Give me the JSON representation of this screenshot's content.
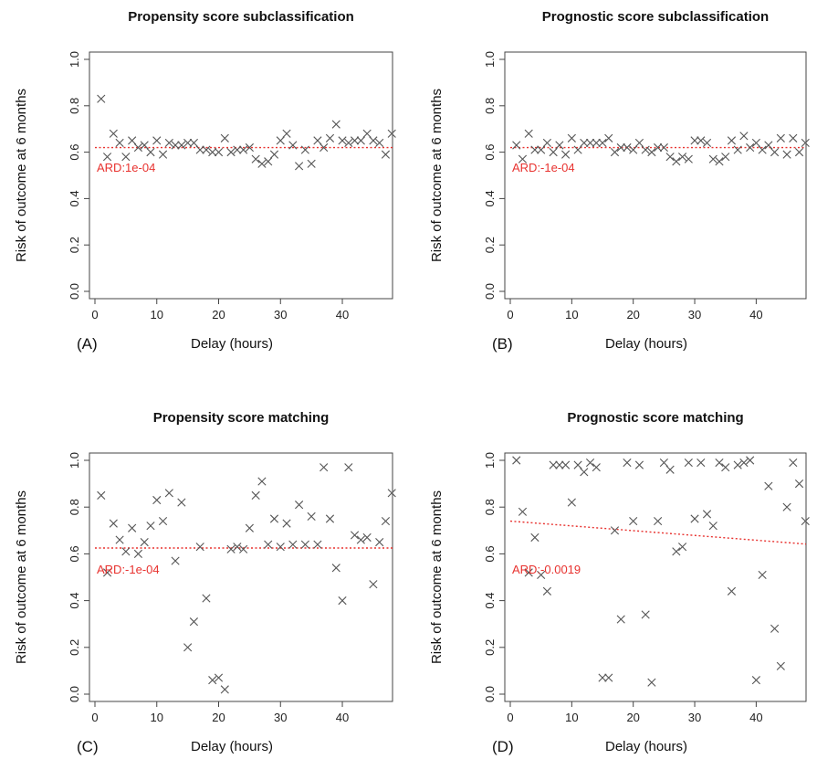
{
  "chart_data": [
    {
      "type": "scatter",
      "panel_label": "(A)",
      "title": "Propensity score subclassification",
      "xlabel": "Delay (hours)",
      "ylabel": "Risk of outcome at 6 months",
      "xlim": [
        0,
        49
      ],
      "ylim": [
        0,
        1
      ],
      "x_ticks": [
        0,
        10,
        20,
        30,
        40
      ],
      "y_ticks": [
        0.0,
        0.2,
        0.4,
        0.6,
        0.8,
        1.0
      ],
      "y_tick_labels": [
        "0.0",
        "0.2",
        "0.4",
        "0.6",
        "0.8",
        "1.0"
      ],
      "annotation": "ARD:1e-04",
      "trend": {
        "x": [
          0,
          49
        ],
        "y": [
          0.62,
          0.62
        ],
        "color": "#e8322f"
      },
      "marker_color": "#555555",
      "x": [
        1,
        2,
        3,
        4,
        5,
        6,
        7,
        8,
        9,
        10,
        11,
        12,
        13,
        14,
        15,
        16,
        17,
        18,
        19,
        20,
        21,
        22,
        23,
        24,
        25,
        26,
        27,
        28,
        29,
        30,
        31,
        32,
        33,
        34,
        35,
        36,
        37,
        38,
        39,
        40,
        41,
        42,
        43,
        44,
        45,
        46,
        47,
        48
      ],
      "y": [
        0.83,
        0.58,
        0.68,
        0.64,
        0.58,
        0.65,
        0.62,
        0.63,
        0.6,
        0.65,
        0.59,
        0.64,
        0.63,
        0.63,
        0.64,
        0.64,
        0.61,
        0.61,
        0.6,
        0.6,
        0.66,
        0.6,
        0.61,
        0.61,
        0.62,
        0.57,
        0.55,
        0.56,
        0.59,
        0.65,
        0.68,
        0.63,
        0.54,
        0.61,
        0.55,
        0.65,
        0.62,
        0.66,
        0.72,
        0.65,
        0.64,
        0.65,
        0.65,
        0.68,
        0.65,
        0.64,
        0.59,
        0.68
      ]
    },
    {
      "type": "scatter",
      "panel_label": "(B)",
      "title": "Prognostic score subclassification",
      "xlabel": "Delay (hours)",
      "ylabel": "Risk of outcome at 6 months",
      "xlim": [
        0,
        49
      ],
      "ylim": [
        0,
        1
      ],
      "x_ticks": [
        0,
        10,
        20,
        30,
        40
      ],
      "y_ticks": [
        0.0,
        0.2,
        0.4,
        0.6,
        0.8,
        1.0
      ],
      "y_tick_labels": [
        "0.0",
        "0.2",
        "0.4",
        "0.6",
        "0.8",
        "1.0"
      ],
      "annotation": "ARD:-1e-04",
      "trend": {
        "x": [
          0,
          49
        ],
        "y": [
          0.62,
          0.62
        ],
        "color": "#e8322f"
      },
      "marker_color": "#555555",
      "x": [
        1,
        2,
        3,
        4,
        5,
        6,
        7,
        8,
        9,
        10,
        11,
        12,
        13,
        14,
        15,
        16,
        17,
        18,
        19,
        20,
        21,
        22,
        23,
        24,
        25,
        26,
        27,
        28,
        29,
        30,
        31,
        32,
        33,
        34,
        35,
        36,
        37,
        38,
        39,
        40,
        41,
        42,
        43,
        44,
        45,
        46,
        47,
        48
      ],
      "y": [
        0.63,
        0.57,
        0.68,
        0.61,
        0.61,
        0.64,
        0.6,
        0.63,
        0.59,
        0.66,
        0.61,
        0.64,
        0.64,
        0.64,
        0.64,
        0.66,
        0.6,
        0.62,
        0.62,
        0.61,
        0.64,
        0.61,
        0.6,
        0.62,
        0.62,
        0.58,
        0.56,
        0.58,
        0.57,
        0.65,
        0.65,
        0.64,
        0.57,
        0.56,
        0.58,
        0.65,
        0.61,
        0.67,
        0.62,
        0.64,
        0.61,
        0.63,
        0.6,
        0.66,
        0.59,
        0.66,
        0.6,
        0.64
      ]
    },
    {
      "type": "scatter",
      "panel_label": "(C)",
      "title": "Propensity score matching",
      "xlabel": "Delay (hours)",
      "ylabel": "Risk of outcome at 6 months",
      "xlim": [
        0,
        49
      ],
      "ylim": [
        0,
        1
      ],
      "x_ticks": [
        0,
        10,
        20,
        30,
        40
      ],
      "y_ticks": [
        0.0,
        0.2,
        0.4,
        0.6,
        0.8,
        1.0
      ],
      "y_tick_labels": [
        "0.0",
        "0.2",
        "0.4",
        "0.6",
        "0.8",
        "1.0"
      ],
      "annotation": "ARD:-1e-04",
      "trend": {
        "x": [
          0,
          49
        ],
        "y": [
          0.625,
          0.625
        ],
        "color": "#e8322f"
      },
      "marker_color": "#555555",
      "x": [
        1,
        2,
        3,
        4,
        5,
        6,
        7,
        8,
        9,
        10,
        11,
        12,
        13,
        14,
        15,
        16,
        17,
        18,
        19,
        20,
        21,
        22,
        23,
        24,
        25,
        26,
        27,
        28,
        29,
        30,
        31,
        32,
        33,
        34,
        35,
        36,
        37,
        38,
        39,
        40,
        41,
        42,
        43,
        44,
        45,
        46,
        47,
        48
      ],
      "y": [
        0.85,
        0.52,
        0.73,
        0.66,
        0.61,
        0.71,
        0.6,
        0.65,
        0.72,
        0.83,
        0.74,
        0.86,
        0.57,
        0.82,
        0.2,
        0.31,
        0.63,
        0.41,
        0.06,
        0.07,
        0.02,
        0.62,
        0.63,
        0.62,
        0.71,
        0.85,
        0.91,
        0.64,
        0.75,
        0.63,
        0.73,
        0.64,
        0.81,
        0.64,
        0.76,
        0.64,
        0.97,
        0.75,
        0.54,
        0.4,
        0.97,
        0.68,
        0.66,
        0.67,
        0.47,
        0.65,
        0.74,
        0.86
      ]
    },
    {
      "type": "scatter",
      "panel_label": "(D)",
      "title": "Prognostic score matching",
      "xlabel": "Delay (hours)",
      "ylabel": "Risk of outcome at 6 months",
      "xlim": [
        0,
        49
      ],
      "ylim": [
        0,
        1
      ],
      "x_ticks": [
        0,
        10,
        20,
        30,
        40
      ],
      "y_ticks": [
        0.0,
        0.2,
        0.4,
        0.6,
        0.8,
        1.0
      ],
      "y_tick_labels": [
        "0.0",
        "0.2",
        "0.4",
        "0.6",
        "0.8",
        "1.0"
      ],
      "annotation": "ARD:-0.0019",
      "trend": {
        "x": [
          0,
          49
        ],
        "y": [
          0.74,
          0.64
        ],
        "color": "#e8322f"
      },
      "marker_color": "#555555",
      "x": [
        1,
        2,
        3,
        4,
        5,
        6,
        7,
        8,
        9,
        10,
        11,
        12,
        13,
        14,
        15,
        16,
        17,
        18,
        19,
        20,
        21,
        22,
        23,
        24,
        25,
        26,
        27,
        28,
        29,
        30,
        31,
        32,
        33,
        34,
        35,
        36,
        37,
        38,
        39,
        40,
        41,
        42,
        43,
        44,
        45,
        46,
        47,
        48
      ],
      "y": [
        1.0,
        0.78,
        0.52,
        0.67,
        0.51,
        0.44,
        0.98,
        0.98,
        0.98,
        0.82,
        0.98,
        0.95,
        0.99,
        0.97,
        0.07,
        0.07,
        0.7,
        0.32,
        0.99,
        0.74,
        0.98,
        0.34,
        0.05,
        0.74,
        0.99,
        0.96,
        0.61,
        0.63,
        0.99,
        0.75,
        0.99,
        0.77,
        0.72,
        0.99,
        0.97,
        0.44,
        0.98,
        0.99,
        1.0,
        0.06,
        0.51,
        0.89,
        0.28,
        0.12,
        0.8,
        0.99,
        0.9,
        0.74
      ]
    }
  ]
}
